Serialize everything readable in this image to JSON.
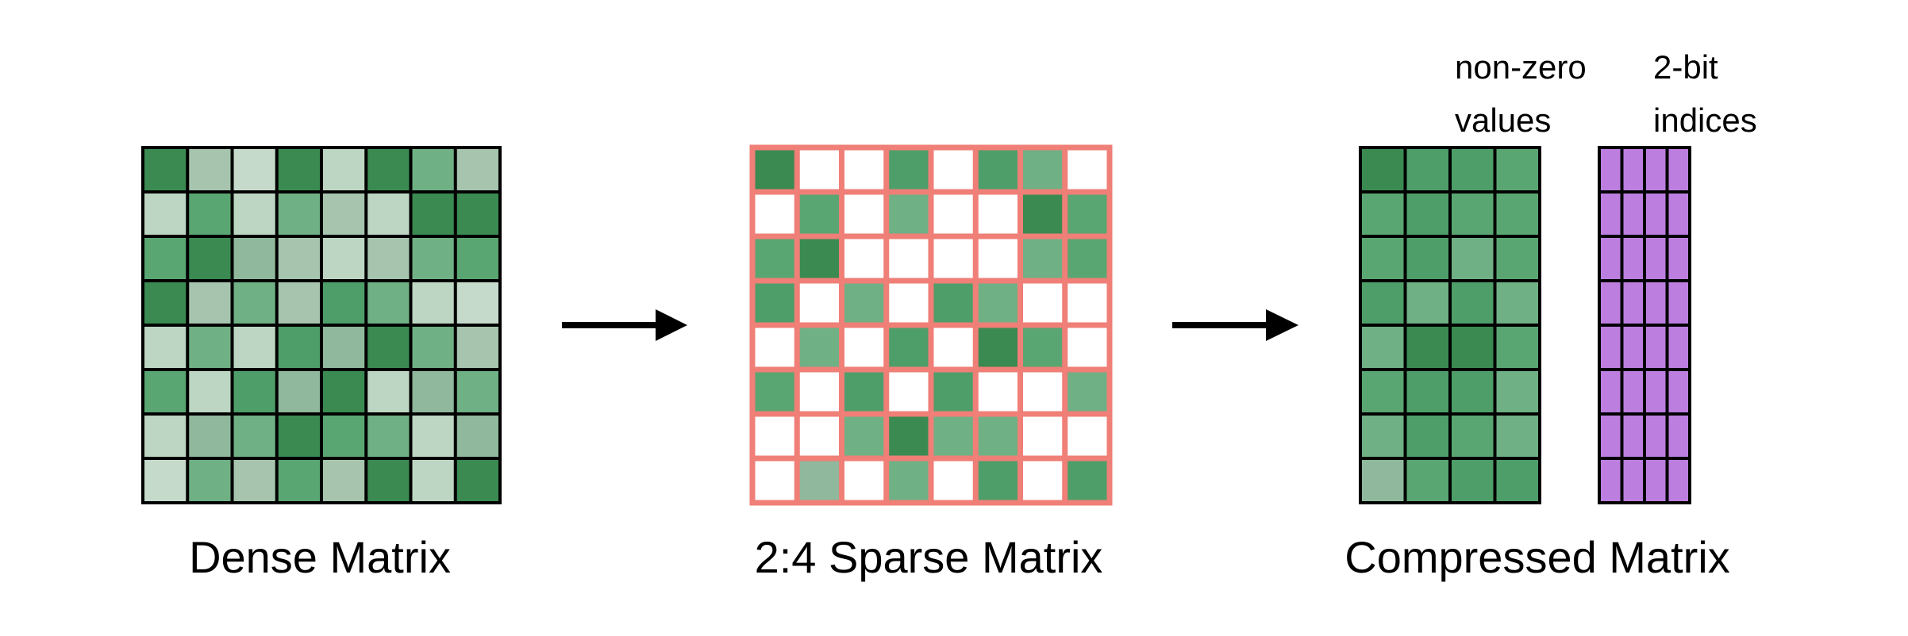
{
  "labels": {
    "dense": "Dense Matrix",
    "sparse": "2:4 Sparse Matrix",
    "compressed": "Compressed Matrix",
    "nonzero_line1": "non-zero",
    "nonzero_line2": "values",
    "indices_line1": "2-bit",
    "indices_line2": "indices"
  },
  "colors": {
    "palette": [
      "#3a8a52",
      "#4e9e6a",
      "#5aa672",
      "#6fb085",
      "#8fb89c",
      "#a6c4ae",
      "#bdd6c3",
      "#c5dacb"
    ],
    "sparse_border": "#ef7f77",
    "index_fill": "#bc7fdf",
    "grid_line": "#000000",
    "empty": "#ffffff"
  },
  "dense": [
    [
      0,
      5,
      7,
      0,
      6,
      0,
      3,
      5
    ],
    [
      6,
      2,
      6,
      3,
      5,
      6,
      0,
      0
    ],
    [
      2,
      0,
      4,
      5,
      6,
      5,
      3,
      2
    ],
    [
      0,
      5,
      3,
      5,
      1,
      3,
      6,
      7
    ],
    [
      6,
      3,
      6,
      1,
      4,
      0,
      3,
      5
    ],
    [
      2,
      6,
      1,
      4,
      0,
      6,
      4,
      3
    ],
    [
      6,
      4,
      3,
      0,
      2,
      3,
      6,
      4
    ],
    [
      7,
      3,
      5,
      2,
      5,
      0,
      6,
      0
    ]
  ],
  "sparse": [
    [
      0,
      -1,
      -1,
      1,
      -1,
      1,
      3,
      -1
    ],
    [
      -1,
      2,
      -1,
      3,
      -1,
      -1,
      0,
      2
    ],
    [
      2,
      0,
      -1,
      -1,
      -1,
      -1,
      3,
      2
    ],
    [
      1,
      -1,
      3,
      -1,
      1,
      3,
      -1,
      -1
    ],
    [
      -1,
      3,
      -1,
      1,
      -1,
      0,
      2,
      -1
    ],
    [
      2,
      -1,
      1,
      -1,
      1,
      -1,
      -1,
      3
    ],
    [
      -1,
      -1,
      3,
      0,
      3,
      3,
      -1,
      -1
    ],
    [
      -1,
      4,
      -1,
      3,
      -1,
      1,
      -1,
      1
    ]
  ],
  "compressed": [
    [
      0,
      1,
      1,
      2
    ],
    [
      2,
      1,
      2,
      2
    ],
    [
      2,
      1,
      3,
      2
    ],
    [
      1,
      3,
      1,
      3
    ],
    [
      3,
      0,
      0,
      2
    ],
    [
      2,
      1,
      1,
      3
    ],
    [
      3,
      1,
      2,
      3
    ],
    [
      4,
      2,
      1,
      1
    ]
  ],
  "indices": {
    "rows": 8,
    "cols": 4
  }
}
